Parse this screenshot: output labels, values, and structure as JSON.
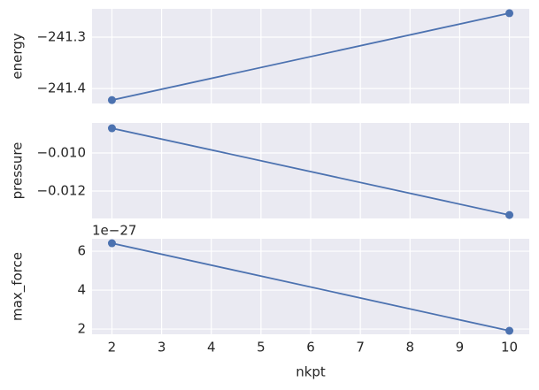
{
  "chart_data": [
    {
      "type": "line",
      "ylabel": "energy",
      "x": [
        2,
        10
      ],
      "sharex": true,
      "series": [
        {
          "color": "#4c72b0",
          "values": [
            -241.4224,
            -241.2534
          ]
        }
      ],
      "xlim": [
        1.6,
        10.4
      ],
      "ylim": [
        -241.429,
        -241.245
      ],
      "yticks": [
        {
          "value": -241.3,
          "label": "−241.3"
        },
        {
          "value": -241.4,
          "label": "−241.4"
        }
      ],
      "grid": true
    },
    {
      "type": "line",
      "ylabel": "pressure",
      "x": [
        2,
        10
      ],
      "sharex": true,
      "series": [
        {
          "color": "#4c72b0",
          "values": [
            -0.0087,
            -0.01326
          ]
        }
      ],
      "xlim": [
        1.6,
        10.4
      ],
      "ylim": [
        -0.01344,
        -0.00842
      ],
      "yticks": [
        {
          "value": -0.01,
          "label": "−0.010"
        },
        {
          "value": -0.012,
          "label": "−0.012"
        }
      ],
      "grid": true
    },
    {
      "type": "line",
      "ylabel": "max_force",
      "xlabel": "nkpt",
      "offset_text": "1e−27",
      "x": [
        2,
        10
      ],
      "series": [
        {
          "color": "#4c72b0",
          "values": [
            6.41,
            1.91
          ]
        }
      ],
      "xlim": [
        1.6,
        10.4
      ],
      "ylim": [
        1.73,
        6.64
      ],
      "xticks": [
        2,
        3,
        4,
        5,
        6,
        7,
        8,
        9,
        10
      ],
      "yticks": [
        2,
        4,
        6
      ],
      "grid": true
    }
  ]
}
